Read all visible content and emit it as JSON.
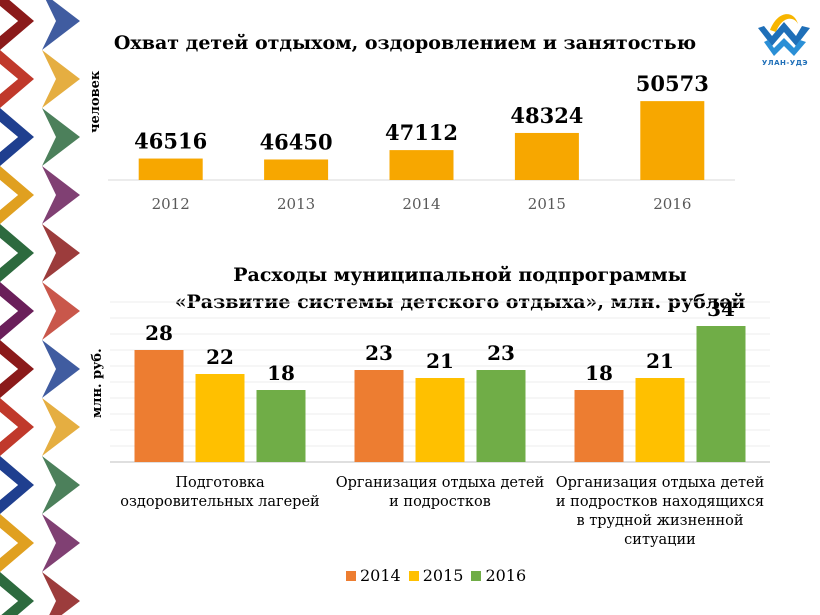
{
  "logo": {
    "caption": "УЛАН-УДЭ"
  },
  "chart_data": [
    {
      "type": "bar",
      "title": "Охват детей отдыхом, оздоровлением и занятостью",
      "ylabel": "человек",
      "categories": [
        "2012",
        "2013",
        "2014",
        "2015",
        "2016"
      ],
      "values": [
        46516,
        46450,
        47112,
        48324,
        50573
      ],
      "ylim": [
        45000,
        51500
      ],
      "color": "#f7a700",
      "grid": false
    },
    {
      "type": "bar",
      "title": [
        "Расходы муниципальной подпрограммы",
        "«Развитие системы детского отдыха», млн. рублей"
      ],
      "ylabel": "млн. руб.",
      "categories": [
        [
          "Подготовка",
          "оздоровительных лагерей"
        ],
        [
          "Организация отдыха детей",
          "и подростков"
        ],
        [
          "Организация отдыха детей",
          "и подростков находящихся",
          "в трудной жизненной",
          "ситуации"
        ]
      ],
      "series": [
        {
          "name": "2014",
          "values": [
            28,
            23,
            18
          ],
          "color": "#ed7d31"
        },
        {
          "name": "2015",
          "values": [
            22,
            21,
            21
          ],
          "color": "#ffc000"
        },
        {
          "name": "2016",
          "values": [
            18,
            23,
            34
          ],
          "color": "#70ad47"
        }
      ],
      "ylim": [
        0,
        40
      ],
      "grid": true,
      "legend": "bottom"
    }
  ]
}
